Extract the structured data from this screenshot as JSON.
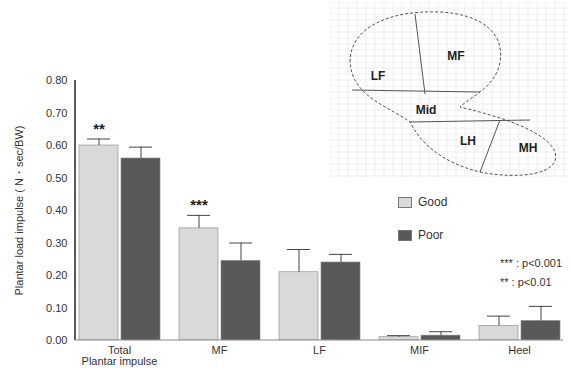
{
  "chart_data": {
    "type": "bar",
    "y_label": "Plantar load impulse ( N・sec/BW)",
    "categories": [
      "Total\nPlantar impulse",
      "MF",
      "LF",
      "MIF",
      "Heel"
    ],
    "series": [
      {
        "name": "Good",
        "color": "#d9d9d9",
        "values": [
          0.6,
          0.345,
          0.21,
          0.01,
          0.045
        ],
        "errors": [
          0.02,
          0.04,
          0.07,
          0.005,
          0.03
        ]
      },
      {
        "name": "Poor",
        "color": "#595959",
        "values": [
          0.56,
          0.245,
          0.24,
          0.015,
          0.06
        ],
        "errors": [
          0.035,
          0.055,
          0.025,
          0.012,
          0.045
        ]
      }
    ],
    "ylim": [
      0,
      0.8
    ],
    "yticks": [
      {
        "value": 0,
        "label": "0.00"
      },
      {
        "value": 0.1,
        "label": "0.10"
      },
      {
        "value": 0.2,
        "label": "0.20"
      },
      {
        "value": 0.3,
        "label": "0.30"
      },
      {
        "value": 0.4,
        "label": "0.40"
      },
      {
        "value": 0.5,
        "label": "0.50"
      },
      {
        "value": 0.6,
        "label": "0.60"
      },
      {
        "value": 0.7,
        "label": "0.70"
      },
      {
        "value": 0.8,
        "label": "0.80"
      }
    ],
    "annotations": [
      {
        "category": "Total\nPlantar impulse",
        "text": "**"
      },
      {
        "category": "MF",
        "text": "***"
      }
    ],
    "significance_legend": [
      "*** : p<0.001",
      "** : p<0.01"
    ],
    "inset_labels": [
      "LF",
      "MF",
      "Mid",
      "LH",
      "MH"
    ],
    "legend": "right",
    "grid": false
  }
}
